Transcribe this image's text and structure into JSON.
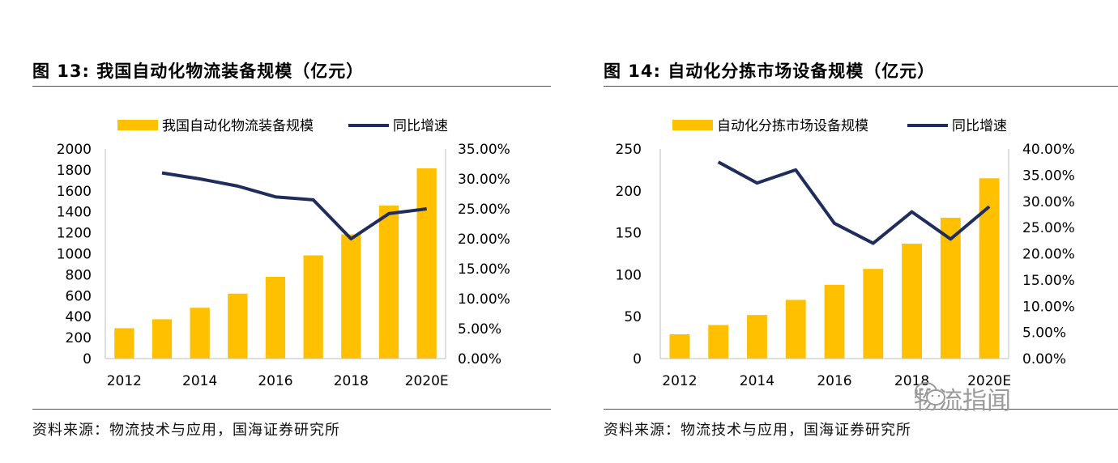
{
  "panels": [
    {
      "title": "图 13:  我国自动化物流装备规模（亿元）",
      "source": "资料来源：物流技术与应用，国海证券研究所"
    },
    {
      "title": "图 14:  自动化分拣市场设备规模（亿元）",
      "source": "资料来源：物流技术与应用，国海证券研究所"
    }
  ],
  "watermark": {
    "text": "物流指闻",
    "icon": "wechat-icon"
  },
  "colors": {
    "bar": "#FFC000",
    "line": "#1F2D5C",
    "axis": "#BFBFBF"
  },
  "chart_data": [
    {
      "type": "bar",
      "legend": [
        "我国自动化物流装备规模",
        "同比增速"
      ],
      "categories": [
        "2012",
        "2013",
        "2014",
        "2015",
        "2016",
        "2017",
        "2018",
        "2019",
        "2020E"
      ],
      "x_tick_labels": [
        "2012",
        "2014",
        "2016",
        "2018",
        "2020E"
      ],
      "series": [
        {
          "name": "我国自动化物流装备规模",
          "type": "bar",
          "axis": "left",
          "values": [
            290,
            375,
            485,
            620,
            780,
            985,
            1185,
            1460,
            1815
          ]
        },
        {
          "name": "同比增速",
          "type": "line",
          "axis": "right",
          "values": [
            null,
            0.31,
            0.3,
            0.288,
            0.27,
            0.265,
            0.2,
            0.242,
            0.25
          ]
        }
      ],
      "y_left": {
        "min": 0,
        "max": 2000,
        "step": 200,
        "ticks": [
          "0",
          "200",
          "400",
          "600",
          "800",
          "1000",
          "1200",
          "1400",
          "1600",
          "1800",
          "2000"
        ]
      },
      "y_right": {
        "min": 0,
        "max": 0.35,
        "step": 0.05,
        "ticks": [
          "0.00%",
          "5.00%",
          "10.00%",
          "15.00%",
          "20.00%",
          "25.00%",
          "30.00%",
          "35.00%"
        ]
      },
      "grid": false,
      "legend_position": "top"
    },
    {
      "type": "bar",
      "legend": [
        "自动化分拣市场设备规模",
        "同比增速"
      ],
      "categories": [
        "2012",
        "2013",
        "2014",
        "2015",
        "2016",
        "2017",
        "2018",
        "2019",
        "2020E"
      ],
      "x_tick_labels": [
        "2012",
        "2014",
        "2016",
        "2018",
        "2020E"
      ],
      "series": [
        {
          "name": "自动化分拣市场设备规模",
          "type": "bar",
          "axis": "left",
          "values": [
            29,
            40,
            52,
            70,
            88,
            107,
            137,
            168,
            215
          ]
        },
        {
          "name": "同比增速",
          "type": "line",
          "axis": "right",
          "values": [
            null,
            0.375,
            0.335,
            0.36,
            0.258,
            0.22,
            0.28,
            0.228,
            0.29
          ]
        }
      ],
      "y_left": {
        "min": 0,
        "max": 250,
        "step": 50,
        "ticks": [
          "0",
          "50",
          "100",
          "150",
          "200",
          "250"
        ]
      },
      "y_right": {
        "min": 0,
        "max": 0.4,
        "step": 0.05,
        "ticks": [
          "0.00%",
          "5.00%",
          "10.00%",
          "15.00%",
          "20.00%",
          "25.00%",
          "30.00%",
          "35.00%",
          "40.00%"
        ]
      },
      "grid": false,
      "legend_position": "top"
    }
  ]
}
